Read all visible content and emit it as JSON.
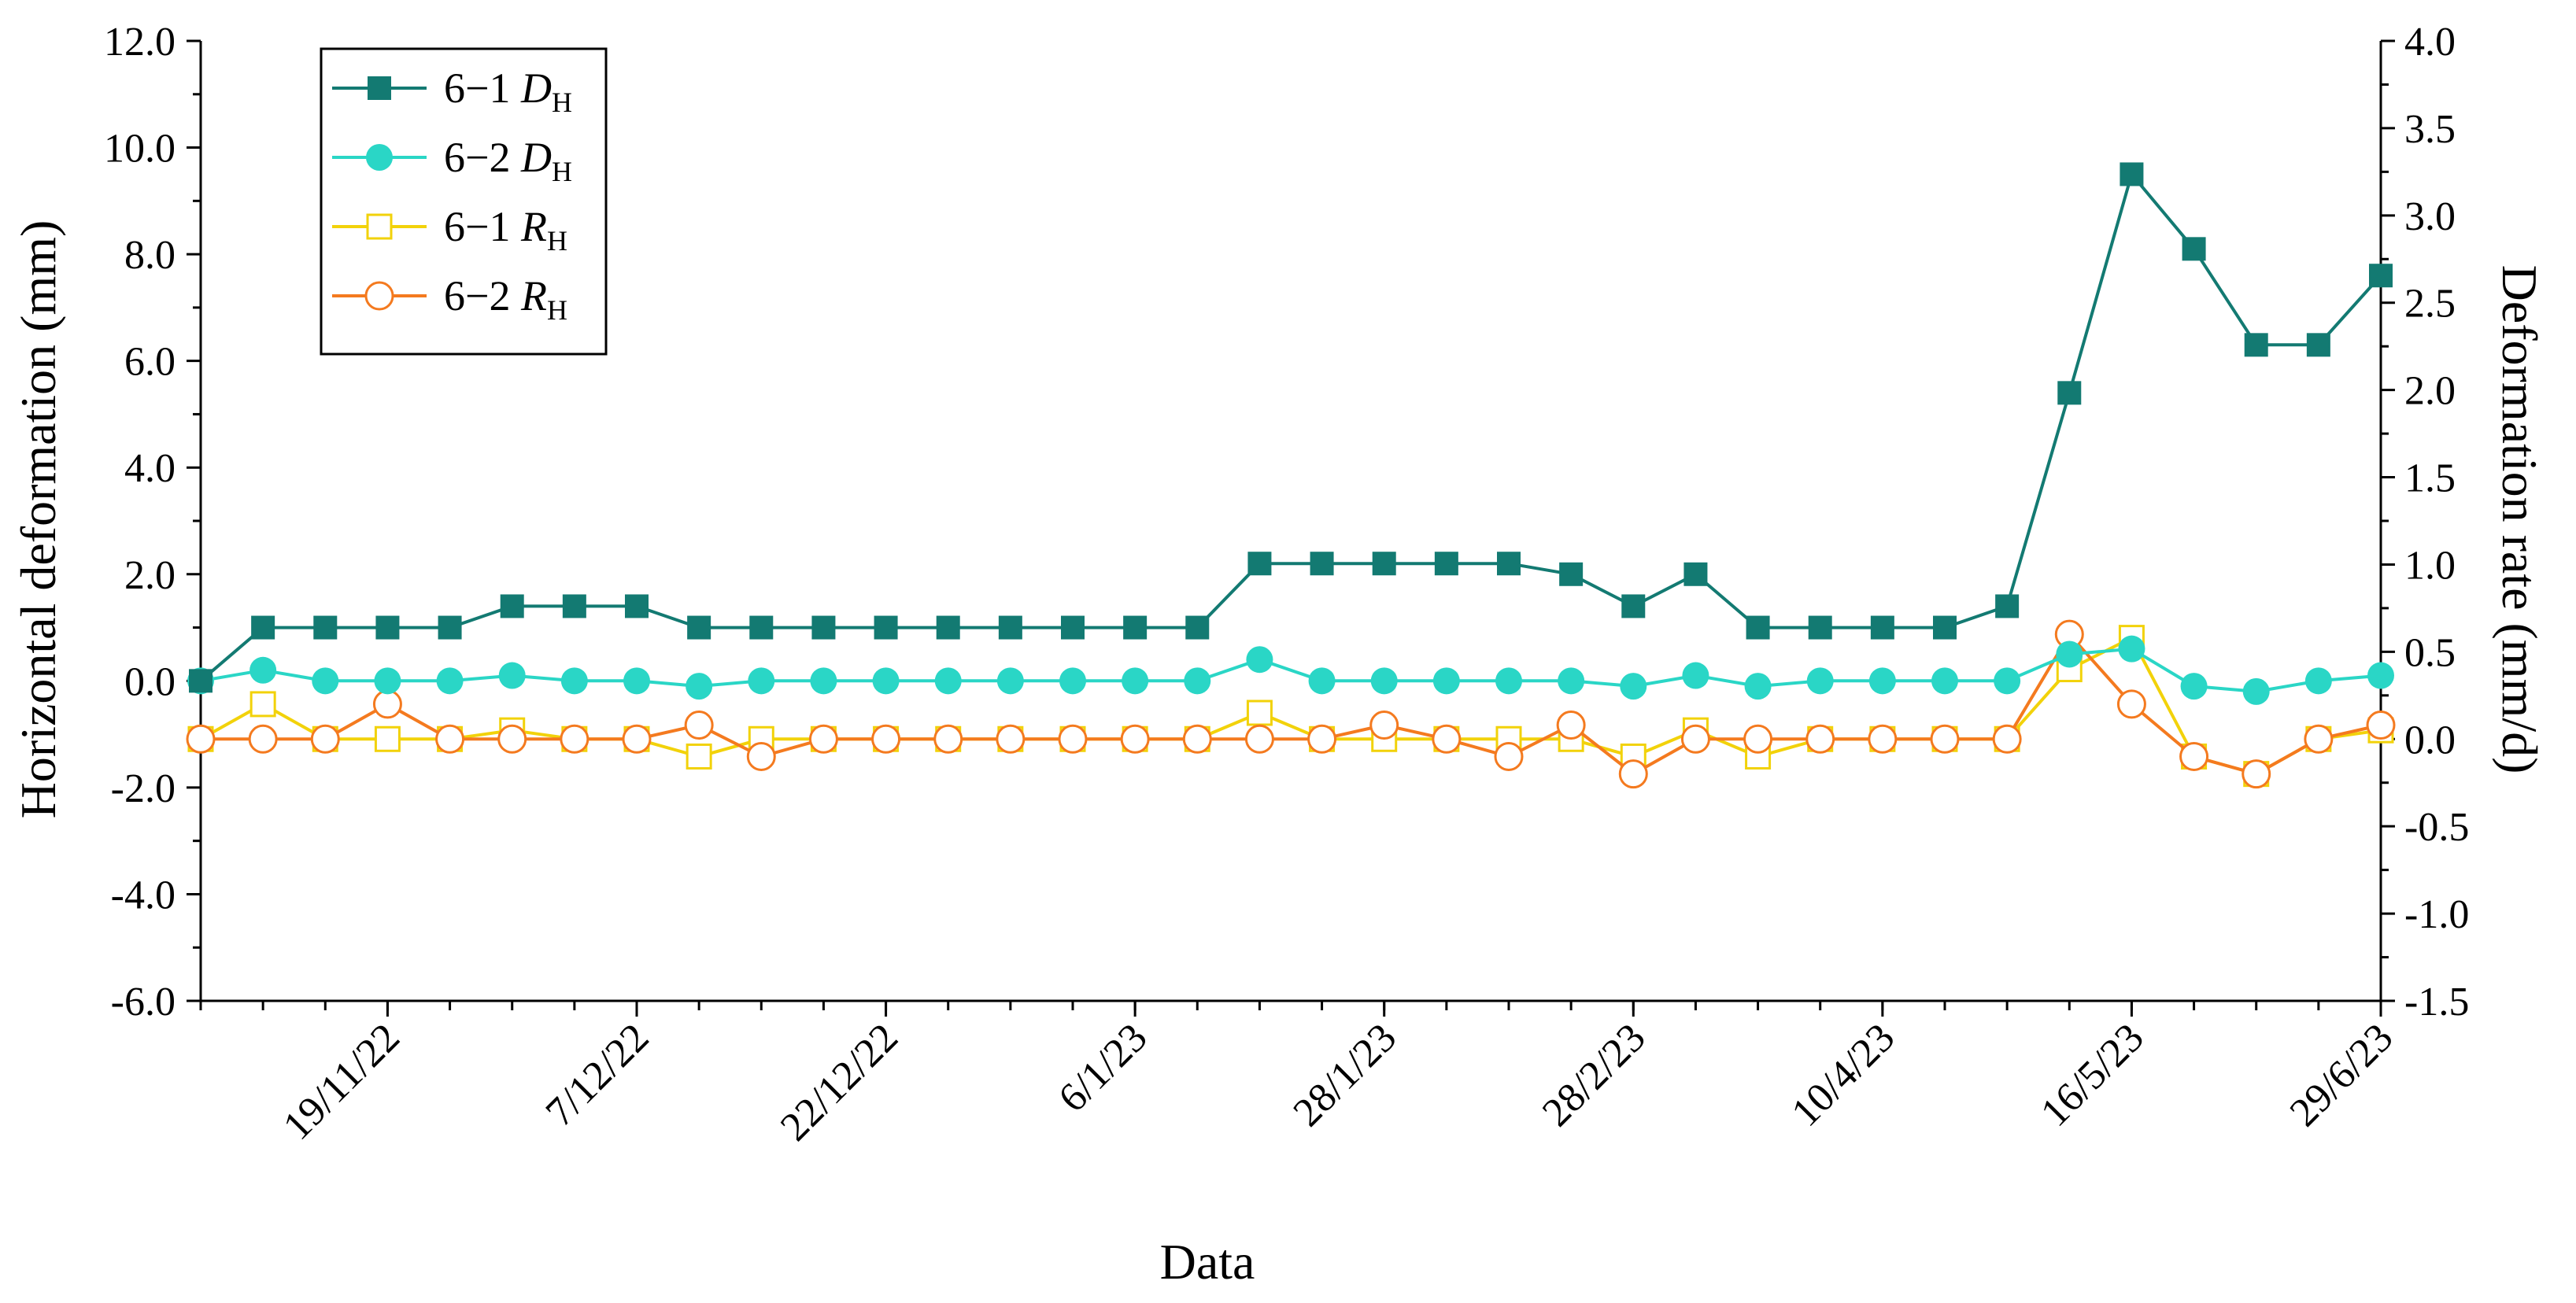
{
  "chart_data": {
    "type": "line",
    "x_axis": {
      "label": "Data",
      "tick_labels": [
        "19/11/22",
        "7/12/22",
        "22/12/22",
        "6/1/23",
        "28/1/23",
        "28/2/23",
        "10/4/23",
        "16/5/23",
        "29/6/23"
      ]
    },
    "y_left": {
      "label": "Horizontal deformation (mm)",
      "ylim": [
        -6,
        12
      ],
      "tick_labels": [
        "-6.0",
        "-4.0",
        "-2.0",
        "0.0",
        "2.0",
        "4.0",
        "6.0",
        "8.0",
        "10.0",
        "12.0"
      ]
    },
    "y_right": {
      "label": "Deformation rate (mm/d)",
      "ylim": [
        -1.5,
        4.0
      ],
      "tick_labels": [
        "-1.5",
        "-1.0",
        "-0.5",
        "0.0",
        "0.5",
        "1.0",
        "1.5",
        "2.0",
        "2.5",
        "3.0",
        "3.5",
        "4.0"
      ]
    },
    "legend_position": "top-left",
    "grid": false,
    "series": [
      {
        "name": "6−1 ",
        "name_italic": "D",
        "name_sub": "H",
        "axis": "left",
        "color": "#137a72",
        "marker": "square-filled",
        "values": [
          0,
          1.0,
          1.0,
          1.0,
          1.0,
          1.4,
          1.4,
          1.4,
          1.0,
          1.0,
          1.0,
          1.0,
          1.0,
          1.0,
          1.0,
          1.0,
          1.0,
          2.2,
          2.2,
          2.2,
          2.2,
          2.2,
          2.0,
          1.4,
          2.0,
          1.0,
          1.0,
          1.0,
          1.0,
          1.4,
          5.4,
          9.5,
          8.1,
          6.3,
          6.3,
          7.6
        ]
      },
      {
        "name": "6−2 ",
        "name_italic": "D",
        "name_sub": "H",
        "axis": "left",
        "color": "#2ad6c6",
        "marker": "circle-filled",
        "values": [
          0,
          0.2,
          0,
          0,
          0,
          0.1,
          0,
          0,
          -0.1,
          0,
          0,
          0,
          0,
          0,
          0,
          0,
          0,
          0.4,
          0,
          0,
          0,
          0,
          0,
          -0.1,
          0.1,
          -0.1,
          0,
          0,
          0,
          0,
          0.5,
          0.6,
          -0.1,
          -0.2,
          0,
          0.1
        ]
      },
      {
        "name": "6−1 ",
        "name_italic": "R",
        "name_sub": "H",
        "axis": "right",
        "color": "#f2d20a",
        "marker": "square-open",
        "values": [
          0,
          0.2,
          0,
          0,
          0,
          0.05,
          0,
          0,
          -0.1,
          0,
          0,
          0,
          0,
          0,
          0,
          0,
          0,
          0.15,
          0,
          0,
          0,
          0,
          0,
          -0.1,
          0.05,
          -0.1,
          0,
          0,
          0,
          0,
          0.4,
          0.58,
          -0.1,
          -0.2,
          0,
          0.05
        ]
      },
      {
        "name": "6−2 ",
        "name_italic": "R",
        "name_sub": "H",
        "axis": "right",
        "color": "#f47a1f",
        "marker": "circle-open",
        "values": [
          0,
          0,
          0,
          0.2,
          0,
          0,
          0,
          0,
          0.08,
          -0.1,
          0,
          0,
          0,
          0,
          0,
          0,
          0,
          0,
          0,
          0.08,
          0,
          -0.1,
          0.08,
          -0.2,
          0,
          0,
          0,
          0,
          0,
          0,
          0.6,
          0.2,
          -0.1,
          -0.2,
          0,
          0.08
        ]
      }
    ]
  }
}
